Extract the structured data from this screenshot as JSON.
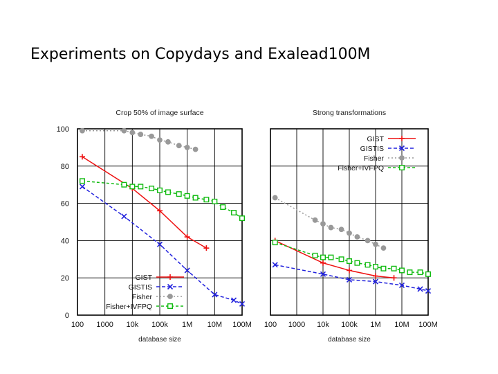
{
  "slide": {
    "title": "Experiments on Copydays and Exalead100M"
  },
  "colors": {
    "GIST": "#ee1111",
    "GISTIS": "#2222dd",
    "Fisher": "#999999",
    "Fisher+IVFPQ": "#11bb11"
  },
  "chart_data": [
    {
      "type": "line",
      "title": "Crop 50% of image surface",
      "xlabel": "database size",
      "ylabel": "",
      "x_scale": "log",
      "xlim": [
        100,
        100000000
      ],
      "ylim": [
        0,
        100
      ],
      "x_ticks": [
        "100",
        "1000",
        "10k",
        "100k",
        "1M",
        "10M",
        "100M"
      ],
      "y_ticks": [
        "0",
        "20",
        "40",
        "60",
        "80",
        "100"
      ],
      "grid": true,
      "legend_position": "bottom-left",
      "series": [
        {
          "name": "GIST",
          "x": [
            150,
            10000,
            100000,
            1000000,
            5000000
          ],
          "y": [
            85,
            68,
            56,
            42,
            36
          ]
        },
        {
          "name": "GISTIS",
          "x": [
            150,
            5000,
            100000,
            1000000,
            10000000,
            50000000,
            100000000
          ],
          "y": [
            69,
            53,
            38,
            24,
            11,
            8,
            6
          ]
        },
        {
          "name": "Fisher",
          "x": [
            150,
            5000,
            10000,
            20000,
            50000,
            100000,
            200000,
            500000,
            1000000,
            2000000
          ],
          "y": [
            99,
            99,
            98,
            97,
            96,
            94,
            93,
            91,
            90,
            89
          ]
        },
        {
          "name": "Fisher+IVFPQ",
          "x": [
            150,
            5000,
            10000,
            20000,
            50000,
            100000,
            200000,
            500000,
            1000000,
            2000000,
            5000000,
            10000000,
            20000000,
            50000000,
            100000000
          ],
          "y": [
            72,
            70,
            69,
            69,
            68,
            67,
            66,
            65,
            64,
            63,
            62,
            61,
            58,
            55,
            52
          ]
        }
      ]
    },
    {
      "type": "line",
      "title": "Strong transformations",
      "xlabel": "database size",
      "ylabel": "",
      "x_scale": "log",
      "xlim": [
        100,
        100000000
      ],
      "ylim": [
        0,
        100
      ],
      "x_ticks": [
        "100",
        "1000",
        "10k",
        "100k",
        "1M",
        "10M",
        "100M"
      ],
      "y_ticks": [],
      "grid": true,
      "legend_position": "top-right",
      "series": [
        {
          "name": "GIST",
          "x": [
            150,
            10000,
            100000,
            1000000,
            5000000
          ],
          "y": [
            40,
            28,
            24,
            21,
            20
          ]
        },
        {
          "name": "GISTIS",
          "x": [
            150,
            10000,
            100000,
            1000000,
            10000000,
            50000000,
            100000000
          ],
          "y": [
            27,
            22,
            19,
            18,
            16,
            14,
            13
          ]
        },
        {
          "name": "Fisher",
          "x": [
            150,
            5000,
            10000,
            20000,
            50000,
            100000,
            200000,
            500000,
            1000000,
            2000000
          ],
          "y": [
            63,
            51,
            49,
            47,
            46,
            44,
            42,
            40,
            38,
            36
          ]
        },
        {
          "name": "Fisher+IVFPQ",
          "x": [
            150,
            5000,
            10000,
            20000,
            50000,
            100000,
            200000,
            500000,
            1000000,
            2000000,
            5000000,
            10000000,
            20000000,
            50000000,
            100000000
          ],
          "y": [
            39,
            32,
            31,
            31,
            30,
            29,
            28,
            27,
            26,
            25,
            25,
            24,
            23,
            23,
            22
          ]
        }
      ]
    }
  ]
}
